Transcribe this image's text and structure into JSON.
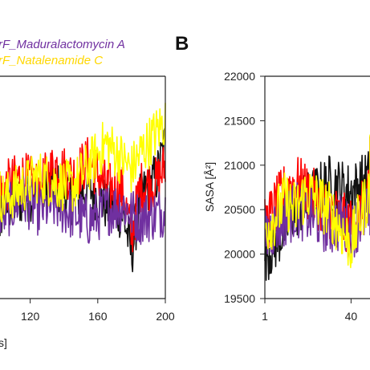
{
  "panel_label_b": "B",
  "chart_data": [
    {
      "type": "line",
      "panel": "A",
      "xlabel_visible": "s]",
      "x_ticks": [
        "120",
        "160",
        "200"
      ],
      "x_tick_values": [
        120,
        160,
        200
      ],
      "xlim": [
        95,
        200
      ],
      "ylim": [
        0,
        1
      ],
      "legend_visible": [
        "rF_Maduralactomycin A",
        "rF_Natalenamide C"
      ],
      "legend_colors": [
        "#7030a0",
        "#ffd700"
      ],
      "series": [
        {
          "color": "#111111",
          "x": [
            95,
            105,
            115,
            125,
            135,
            145,
            155,
            165,
            175,
            180,
            185,
            195,
            200
          ],
          "y": [
            0.35,
            0.4,
            0.45,
            0.48,
            0.5,
            0.45,
            0.5,
            0.42,
            0.38,
            0.2,
            0.45,
            0.55,
            0.7
          ]
        },
        {
          "color": "#ff0000",
          "x": [
            95,
            105,
            115,
            125,
            135,
            145,
            155,
            165,
            175,
            180,
            185,
            195,
            200
          ],
          "y": [
            0.4,
            0.5,
            0.55,
            0.5,
            0.6,
            0.55,
            0.62,
            0.5,
            0.48,
            0.28,
            0.5,
            0.52,
            0.6
          ]
        },
        {
          "color": "#7030a0",
          "x": [
            95,
            105,
            115,
            125,
            135,
            145,
            155,
            165,
            175,
            180,
            185,
            195,
            200
          ],
          "y": [
            0.42,
            0.38,
            0.45,
            0.4,
            0.42,
            0.38,
            0.35,
            0.4,
            0.42,
            0.38,
            0.36,
            0.38,
            0.4
          ]
        },
        {
          "color": "#ffff00",
          "x": [
            95,
            105,
            115,
            125,
            135,
            145,
            155,
            165,
            175,
            180,
            185,
            195,
            200
          ],
          "y": [
            0.5,
            0.45,
            0.5,
            0.55,
            0.52,
            0.5,
            0.6,
            0.7,
            0.62,
            0.58,
            0.65,
            0.75,
            0.8
          ]
        }
      ]
    },
    {
      "type": "line",
      "panel": "B",
      "ylabel": "SASA [Å²]",
      "x_ticks": [
        "1",
        "40"
      ],
      "x_tick_values": [
        1,
        40
      ],
      "xlim": [
        1,
        70
      ],
      "y_ticks": [
        "19500",
        "20000",
        "20500",
        "21000",
        "21500",
        "22000"
      ],
      "y_tick_values": [
        19500,
        20000,
        20500,
        21000,
        21500,
        22000
      ],
      "ylim": [
        19500,
        22000
      ],
      "series": [
        {
          "color": "#111111",
          "x": [
            1,
            5,
            10,
            15,
            20,
            25,
            30,
            35,
            40,
            45,
            50,
            55,
            60,
            65,
            70
          ],
          "y": [
            20000,
            20100,
            20300,
            20500,
            20600,
            20700,
            20800,
            20750,
            20700,
            20800,
            20900,
            21000,
            21050,
            21000,
            20900
          ]
        },
        {
          "color": "#ff0000",
          "x": [
            1,
            5,
            10,
            15,
            20,
            25,
            30,
            35,
            40,
            45,
            50,
            55,
            60,
            65,
            70
          ],
          "y": [
            20300,
            20500,
            20700,
            20800,
            20700,
            20600,
            20500,
            20400,
            20300,
            20500,
            20700,
            20900,
            21000,
            20900,
            20800
          ]
        },
        {
          "color": "#7030a0",
          "x": [
            1,
            5,
            10,
            15,
            20,
            25,
            30,
            35,
            40,
            45,
            50,
            55,
            60,
            65,
            70
          ],
          "y": [
            20200,
            20300,
            20400,
            20500,
            20450,
            20400,
            20300,
            20350,
            20250,
            20400,
            20500,
            20600,
            20700,
            20650,
            20600
          ]
        },
        {
          "color": "#ffff00",
          "x": [
            1,
            5,
            10,
            15,
            20,
            25,
            30,
            35,
            40,
            45,
            50,
            55,
            60,
            65,
            70
          ],
          "y": [
            20300,
            20400,
            20600,
            20500,
            20700,
            20600,
            20500,
            20300,
            20100,
            20500,
            20800,
            21000,
            21100,
            21000,
            20900
          ]
        }
      ]
    }
  ]
}
